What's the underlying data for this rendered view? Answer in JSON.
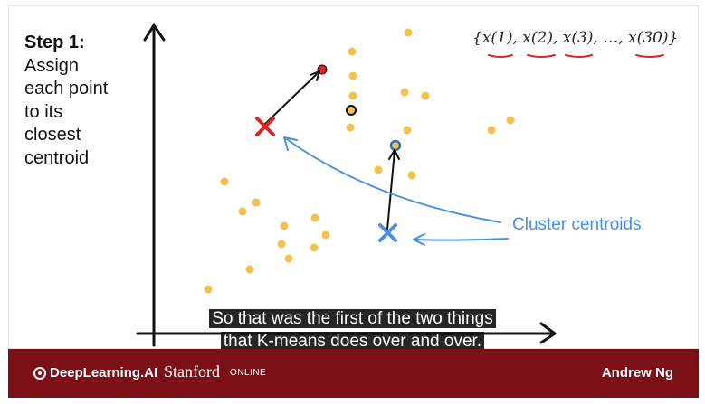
{
  "slide": {
    "step_title": "Step 1:",
    "step_lines": [
      "Assign",
      "each point",
      "to its",
      "closest",
      "centroid"
    ],
    "notation": "{x(1), x(2), x(3), …, x(30)}",
    "cluster_label": "Cluster centroids"
  },
  "subtitles": [
    "So that was the first of the two things",
    "that K-means does over and over."
  ],
  "footer": {
    "brand": "DeepLearning.AI",
    "university": "Stanford",
    "university_suffix": "ONLINE",
    "author": "Andrew Ng"
  },
  "colors": {
    "point": "#f2c14e",
    "red_centroid": "#e02424",
    "blue_centroid": "#4a90e2",
    "footer": "#7d0f17"
  }
}
